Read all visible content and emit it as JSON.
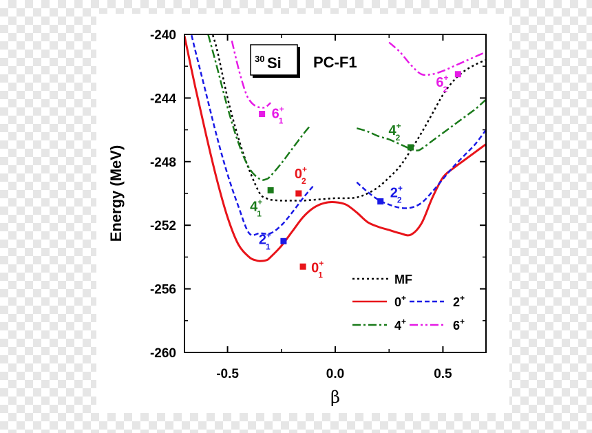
{
  "chart_data": {
    "type": "line",
    "title": "PC-F1",
    "nucleus": {
      "mass": "30",
      "element": "Si"
    },
    "xlabel": "β",
    "ylabel": "Energy (MeV)",
    "xlim": [
      -0.7,
      0.7
    ],
    "ylim": [
      -260,
      -240
    ],
    "xticks": [
      -0.5,
      0.0,
      0.5
    ],
    "xtick_labels": [
      "-0.5",
      "0.0",
      "0.5"
    ],
    "yticks": [
      -240,
      -244,
      -248,
      -252,
      -256,
      -260
    ],
    "ytick_labels": [
      "-240",
      "-244",
      "-248",
      "-252",
      "-256",
      "-260"
    ],
    "colors": {
      "mf": "#000000",
      "j0": "#e8141a",
      "j2": "#1a1ae6",
      "j4": "#1a7a1a",
      "j6": "#e61ae6"
    },
    "series": [
      {
        "id": "mf",
        "name": "MF",
        "color": "#000000",
        "dash": "3,4",
        "x": [
          -0.7,
          -0.6,
          -0.55,
          -0.5,
          -0.45,
          -0.4,
          -0.35,
          -0.32,
          -0.3,
          -0.25,
          -0.2,
          -0.15,
          -0.1,
          -0.05,
          0.0,
          0.05,
          0.1,
          0.15,
          0.2,
          0.25,
          0.3,
          0.35,
          0.4,
          0.45,
          0.5,
          0.55,
          0.6,
          0.65,
          0.7
        ],
        "y": [
          -233,
          -238.6,
          -240.9,
          -244.0,
          -246.5,
          -248.5,
          -250.0,
          -250.3,
          -250.4,
          -250.45,
          -250.45,
          -250.45,
          -250.4,
          -250.35,
          -250.3,
          -250.3,
          -250.25,
          -250.0,
          -249.6,
          -249.0,
          -248.3,
          -247.3,
          -246.2,
          -245.0,
          -243.8,
          -242.9,
          -242.3,
          -241.9,
          -241.6
        ]
      },
      {
        "id": "j0",
        "name": "0+",
        "color": "#e8141a",
        "dash": "",
        "x": [
          -0.7,
          -0.65,
          -0.6,
          -0.55,
          -0.5,
          -0.45,
          -0.4,
          -0.37,
          -0.35,
          -0.32,
          -0.3,
          -0.25,
          -0.2,
          -0.15,
          -0.1,
          -0.05,
          0.0,
          0.05,
          0.1,
          0.15,
          0.2,
          0.25,
          0.3,
          0.35,
          0.4,
          0.45,
          0.5,
          0.55,
          0.6,
          0.65,
          0.7
        ],
        "y": [
          -240.1,
          -243.3,
          -246.3,
          -249.1,
          -251.5,
          -253.2,
          -254.0,
          -254.2,
          -254.25,
          -254.2,
          -254.0,
          -253.3,
          -252.4,
          -251.5,
          -250.9,
          -250.6,
          -250.55,
          -250.7,
          -251.2,
          -251.8,
          -252.1,
          -252.3,
          -252.5,
          -252.6,
          -251.9,
          -250.3,
          -249.0,
          -248.4,
          -247.9,
          -247.4,
          -246.9
        ]
      },
      {
        "id": "j2a",
        "name": "2+",
        "color": "#1a1ae6",
        "dash": "7,4",
        "x": [
          -0.7,
          -0.65,
          -0.6,
          -0.55,
          -0.5,
          -0.45,
          -0.4,
          -0.35,
          -0.3,
          -0.25,
          -0.2,
          -0.15,
          -0.1
        ],
        "y": [
          -238.2,
          -241.0,
          -243.7,
          -246.4,
          -248.8,
          -250.8,
          -252.5,
          -252.5,
          -252.5,
          -252.0,
          -251.2,
          -250.3,
          -249.5
        ]
      },
      {
        "id": "j2b",
        "name": "2+",
        "color": "#1a1ae6",
        "dash": "7,4",
        "x": [
          0.1,
          0.15,
          0.2,
          0.25,
          0.3,
          0.35,
          0.4,
          0.45,
          0.5,
          0.55,
          0.6,
          0.65,
          0.7
        ],
        "y": [
          -249.3,
          -249.9,
          -250.4,
          -250.7,
          -250.9,
          -250.9,
          -250.6,
          -249.9,
          -249.1,
          -248.3,
          -247.6,
          -246.9,
          -246.0
        ]
      },
      {
        "id": "j4a",
        "name": "4+",
        "color": "#1a7a1a",
        "dash": "12,4,3,4",
        "x": [
          -0.59,
          -0.55,
          -0.5,
          -0.45,
          -0.4,
          -0.35,
          -0.32,
          -0.3,
          -0.25,
          -0.2,
          -0.15,
          -0.12
        ],
        "y": [
          -240.0,
          -242.0,
          -244.6,
          -246.8,
          -248.4,
          -249.1,
          -249.1,
          -248.9,
          -248.1,
          -247.2,
          -246.3,
          -245.8
        ]
      },
      {
        "id": "j4b",
        "name": "4+",
        "color": "#1a7a1a",
        "dash": "12,4,3,4",
        "x": [
          0.1,
          0.15,
          0.2,
          0.25,
          0.3,
          0.35,
          0.38,
          0.4,
          0.45,
          0.5,
          0.55,
          0.6,
          0.65,
          0.7
        ],
        "y": [
          -245.9,
          -246.1,
          -246.4,
          -246.6,
          -246.9,
          -247.2,
          -247.3,
          -247.2,
          -246.7,
          -246.2,
          -245.7,
          -245.2,
          -244.7,
          -244.1
        ]
      },
      {
        "id": "j6a",
        "name": "6+",
        "color": "#e61ae6",
        "dash": "12,4,3,4,3,4",
        "x": [
          -0.48,
          -0.45,
          -0.42,
          -0.4,
          -0.37,
          -0.33,
          -0.3
        ],
        "y": [
          -240.4,
          -242.1,
          -243.5,
          -244.1,
          -244.5,
          -244.6,
          -244.3
        ]
      },
      {
        "id": "j6b",
        "name": "6+",
        "color": "#e61ae6",
        "dash": "12,4,3,4,3,4",
        "x": [
          0.25,
          0.3,
          0.35,
          0.4,
          0.45,
          0.5,
          0.55,
          0.6,
          0.65,
          0.7
        ],
        "y": [
          -240.5,
          -241.1,
          -241.9,
          -242.5,
          -242.5,
          -242.3,
          -242.0,
          -241.7,
          -241.4,
          -241.1
        ]
      }
    ],
    "markers": [
      {
        "id": "m01",
        "x": -0.15,
        "y": -254.6,
        "color": "#e8141a",
        "base": "0",
        "sub": "1",
        "dx": 12,
        "dy": 8
      },
      {
        "id": "m02",
        "x": -0.17,
        "y": -250.0,
        "color": "#e8141a",
        "base": "0",
        "sub": "2",
        "dx": -6,
        "dy": -22
      },
      {
        "id": "m21",
        "x": -0.24,
        "y": -253.0,
        "color": "#1a1ae6",
        "base": "2",
        "sub": "1",
        "dx": -36,
        "dy": 4
      },
      {
        "id": "m22",
        "x": 0.21,
        "y": -250.5,
        "color": "#1a1ae6",
        "base": "2",
        "sub": "2",
        "dx": 14,
        "dy": -6
      },
      {
        "id": "m41",
        "x": -0.3,
        "y": -249.8,
        "color": "#1a7a1a",
        "base": "4",
        "sub": "1",
        "dx": -30,
        "dy": 30
      },
      {
        "id": "m42",
        "x": 0.35,
        "y": -247.1,
        "color": "#1a7a1a",
        "base": "4",
        "sub": "2",
        "dx": -32,
        "dy": -18
      },
      {
        "id": "m61",
        "x": -0.34,
        "y": -245.0,
        "color": "#e61ae6",
        "base": "6",
        "sub": "1",
        "dx": 14,
        "dy": 6
      },
      {
        "id": "m62",
        "x": 0.57,
        "y": -242.5,
        "color": "#e61ae6",
        "base": "6",
        "sub": "2",
        "dx": -32,
        "dy": 18
      }
    ],
    "legend": {
      "placement": "bottom-right",
      "entries": [
        {
          "label": "MF",
          "sup": "",
          "color": "#000000",
          "dash": "3,4",
          "row": 0,
          "col": 1
        },
        {
          "label": "0",
          "sup": "+",
          "color": "#e8141a",
          "dash": "",
          "row": 1,
          "col": 0
        },
        {
          "label": "2",
          "sup": "+",
          "color": "#1a1ae6",
          "dash": "7,4",
          "row": 1,
          "col": 1
        },
        {
          "label": "4",
          "sup": "+",
          "color": "#1a7a1a",
          "dash": "12,4,3,4",
          "row": 2,
          "col": 0
        },
        {
          "label": "6",
          "sup": "+",
          "color": "#e61ae6",
          "dash": "12,4,3,4,3,4",
          "row": 2,
          "col": 1
        }
      ]
    }
  }
}
